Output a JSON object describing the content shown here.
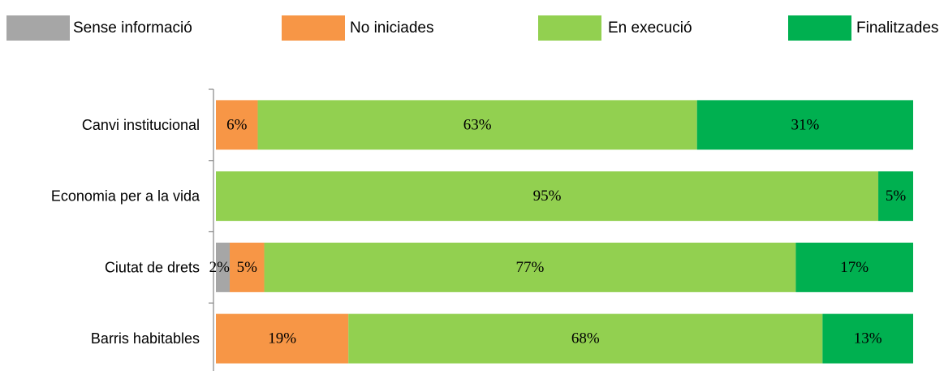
{
  "chart_data": {
    "type": "bar",
    "orientation": "horizontal",
    "stacked": true,
    "normalized": true,
    "categories": [
      "Canvi institucional",
      "Economia per a la vida",
      "Ciutat de drets",
      "Barris habitables"
    ],
    "series": [
      {
        "name": "Sense informació",
        "color": "#a6a6a6",
        "values": [
          0,
          0,
          2,
          0
        ],
        "labels": [
          "",
          "",
          "2%",
          ""
        ]
      },
      {
        "name": "No iniciades",
        "color": "#f79646",
        "values": [
          6,
          0,
          5,
          19
        ],
        "labels": [
          "6%",
          "",
          "5%",
          "19%"
        ]
      },
      {
        "name": "En execució",
        "color": "#92d050",
        "values": [
          63,
          95,
          77,
          68
        ],
        "labels": [
          "63%",
          "95%",
          "77%",
          "68%"
        ]
      },
      {
        "name": "Finalitzades",
        "color": "#00b050",
        "values": [
          31,
          5,
          17,
          13
        ],
        "labels": [
          "31%",
          "5%",
          "17%",
          "13%"
        ]
      }
    ],
    "xlim": [
      0,
      100
    ],
    "grid": false,
    "legend_position": "top"
  }
}
